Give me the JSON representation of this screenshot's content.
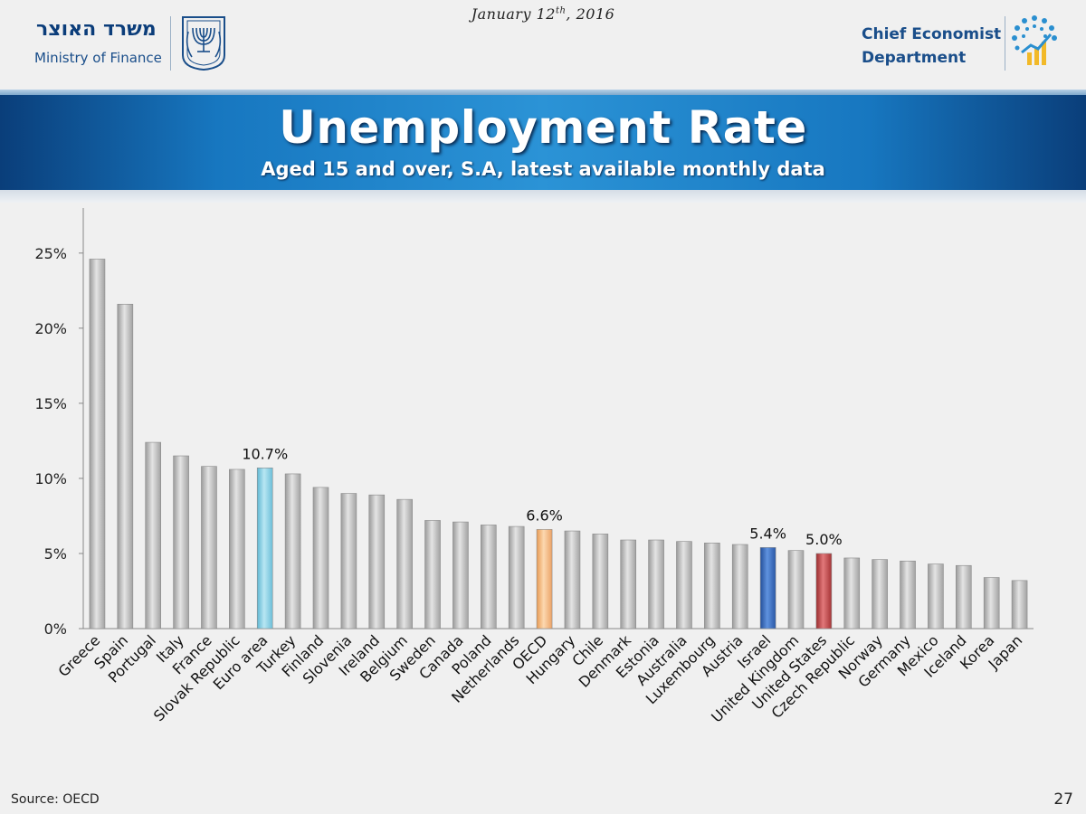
{
  "header": {
    "date_main": "January 12",
    "date_sup": "th",
    "date_rest": ", 2016",
    "ministry_hebrew": "משרד האוצר",
    "ministry_english": "Ministry of Finance",
    "dept_line1": "Chief Economist",
    "dept_line2": "Department"
  },
  "footer": {
    "source": "Source: OECD",
    "page_number": "27"
  },
  "colors": {
    "bar_default": "#c8c8c8",
    "euro_area": "#8fd3e8",
    "oecd": "#f7c08a",
    "israel": "#3a6fc4",
    "united_states": "#c0474a",
    "banner_dark": "#0a3e7a",
    "banner_light": "#2b93d6"
  },
  "chart_data": {
    "type": "bar",
    "title": "Unemployment Rate",
    "subtitle": "Aged 15 and over, S.A, latest available monthly data",
    "xlabel": "",
    "ylabel": "",
    "ylim": [
      0,
      28
    ],
    "yticks": [
      0,
      5,
      10,
      15,
      20,
      25
    ],
    "ytick_labels": [
      "0%",
      "5%",
      "10%",
      "15%",
      "20%",
      "25%"
    ],
    "grid": false,
    "legend": "none",
    "categories": [
      "Greece",
      "Spain",
      "Portugal",
      "Italy",
      "France",
      "Slovak Republic",
      "Euro area",
      "Turkey",
      "Finland",
      "Slovenia",
      "Ireland",
      "Belgium",
      "Sweden",
      "Canada",
      "Poland",
      "Netherlands",
      "OECD",
      "Hungary",
      "Chile",
      "Denmark",
      "Estonia",
      "Australia",
      "Luxembourg",
      "Austria",
      "Israel",
      "United Kingdom",
      "United States",
      "Czech Republic",
      "Norway",
      "Germany",
      "Mexico",
      "Iceland",
      "Korea",
      "Japan"
    ],
    "values": [
      24.6,
      21.6,
      12.4,
      11.5,
      10.8,
      10.6,
      10.7,
      10.3,
      9.4,
      9.0,
      8.9,
      8.6,
      7.2,
      7.1,
      6.9,
      6.8,
      6.6,
      6.5,
      6.3,
      5.9,
      5.9,
      5.8,
      5.7,
      5.6,
      5.4,
      5.2,
      5.0,
      4.7,
      4.6,
      4.5,
      4.3,
      4.2,
      3.4,
      3.2
    ],
    "highlights": [
      {
        "category": "Euro area",
        "label": "10.7%",
        "color": "#8fd3e8"
      },
      {
        "category": "OECD",
        "label": "6.6%",
        "color": "#f7c08a"
      },
      {
        "category": "Israel",
        "label": "5.4%",
        "color": "#3a6fc4"
      },
      {
        "category": "United States",
        "label": "5.0%",
        "color": "#c0474a"
      }
    ]
  }
}
